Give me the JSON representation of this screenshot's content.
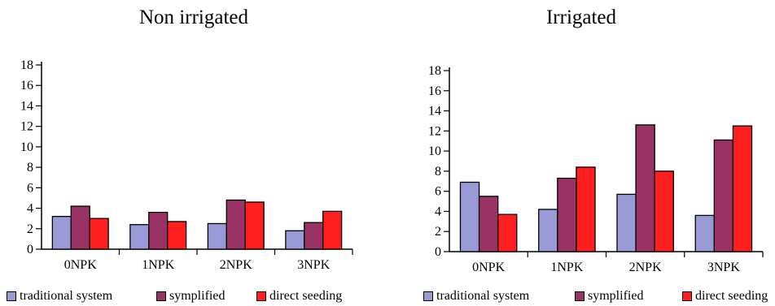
{
  "legend": [
    {
      "label": "traditional system",
      "color": "#9a9ad6"
    },
    {
      "label": "symplified",
      "color": "#993366"
    },
    {
      "label": "direct seeding",
      "color": "#ff1f1f"
    }
  ],
  "chart_data": [
    {
      "type": "bar",
      "title": "Non irrigated",
      "categories": [
        "0NPK",
        "1NPK",
        "2NPK",
        "3NPK"
      ],
      "yticks": [
        "0",
        "2",
        "4",
        "6",
        "8",
        "10",
        "12",
        "14",
        "16",
        "18"
      ],
      "ylim": [
        0,
        18
      ],
      "series": [
        {
          "name": "traditional system",
          "values": [
            3.2,
            2.4,
            2.5,
            1.8
          ]
        },
        {
          "name": "symplified",
          "values": [
            4.2,
            3.6,
            4.8,
            2.6
          ]
        },
        {
          "name": "direct seeding",
          "values": [
            3.0,
            2.7,
            4.6,
            3.7
          ]
        }
      ]
    },
    {
      "type": "bar",
      "title": "Irrigated",
      "categories": [
        "0NPK",
        "1NPK",
        "2NPK",
        "3NPK"
      ],
      "yticks": [
        "0",
        "2",
        "4",
        "6",
        "8",
        "10",
        "12",
        "14",
        "16",
        "18"
      ],
      "ylim": [
        0,
        18
      ],
      "series": [
        {
          "name": "traditional system",
          "values": [
            6.9,
            4.2,
            5.7,
            3.6
          ]
        },
        {
          "name": "symplified",
          "values": [
            5.5,
            7.3,
            12.6,
            11.1
          ]
        },
        {
          "name": "direct seeding",
          "values": [
            3.7,
            8.4,
            8.0,
            12.5
          ]
        }
      ]
    }
  ]
}
